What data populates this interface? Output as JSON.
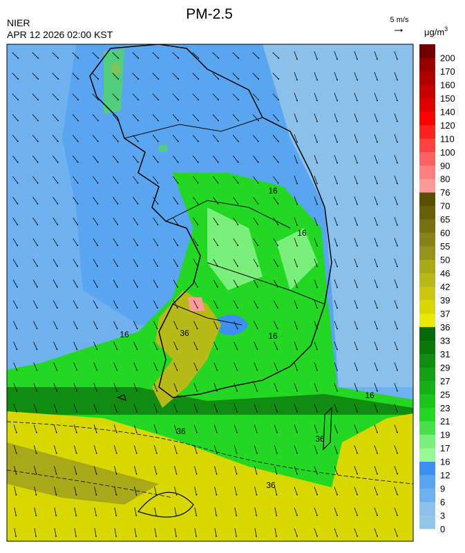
{
  "header": {
    "title": "PM-2.5",
    "agency": "NIER",
    "datetime": "APR 12 2026 02:00 KST",
    "wind_scale": "5 m/s"
  },
  "colorbar": {
    "unit": "μg/m",
    "unit_power": "3",
    "levels": [
      0,
      3,
      6,
      9,
      12,
      16,
      17,
      19,
      21,
      23,
      25,
      27,
      29,
      31,
      33,
      36,
      37,
      39,
      42,
      46,
      50,
      55,
      60,
      65,
      70,
      76,
      80,
      90,
      100,
      110,
      120,
      140,
      150,
      160,
      170,
      200
    ],
    "colors": [
      "#94c6e8",
      "#8ac0ea",
      "#6fb0ef",
      "#5aa5f0",
      "#3d8ff0",
      "#96f996",
      "#7af07a",
      "#4be04b",
      "#22d822",
      "#1cc41c",
      "#18b018",
      "#14a014",
      "#108c10",
      "#0c780c",
      "#066806",
      "#e8e800",
      "#d8d800",
      "#c8c810",
      "#b8b818",
      "#a8a818",
      "#989020",
      "#888018",
      "#787010",
      "#686008",
      "#585000",
      "#ff9a9a",
      "#ff8080",
      "#ff6060",
      "#ff4040",
      "#ff2020",
      "#ff0000",
      "#e00000",
      "#c80000",
      "#b00000",
      "#980000",
      "#700000"
    ]
  },
  "map": {
    "contour_labels": [
      16,
      16,
      16,
      16,
      16,
      36,
      36,
      36,
      36
    ]
  }
}
